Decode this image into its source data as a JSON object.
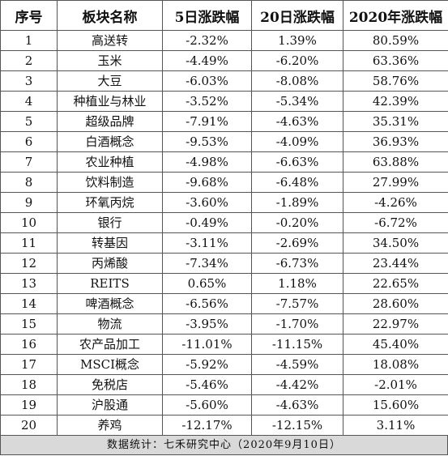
{
  "table": {
    "headers": [
      "序号",
      "板块名称",
      "5日涨跌幅",
      "20日涨跌幅",
      "2020年涨跌幅"
    ],
    "rows": [
      [
        "1",
        "高送转",
        "-2.32%",
        "1.39%",
        "80.59%"
      ],
      [
        "2",
        "玉米",
        "-4.49%",
        "-6.20%",
        "63.36%"
      ],
      [
        "3",
        "大豆",
        "-6.03%",
        "-8.08%",
        "58.76%"
      ],
      [
        "4",
        "种植业与林业",
        "-3.52%",
        "-5.34%",
        "42.39%"
      ],
      [
        "5",
        "超级品牌",
        "-7.91%",
        "-4.63%",
        "35.31%"
      ],
      [
        "6",
        "白酒概念",
        "-9.53%",
        "-4.09%",
        "36.93%"
      ],
      [
        "7",
        "农业种植",
        "-4.98%",
        "-6.63%",
        "63.88%"
      ],
      [
        "8",
        "饮料制造",
        "-9.68%",
        "-6.48%",
        "27.99%"
      ],
      [
        "9",
        "环氧丙烷",
        "-3.60%",
        "-1.89%",
        "-4.26%"
      ],
      [
        "10",
        "银行",
        "-0.49%",
        "-0.20%",
        "-6.72%"
      ],
      [
        "11",
        "转基因",
        "-3.11%",
        "-2.69%",
        "34.50%"
      ],
      [
        "12",
        "丙烯酸",
        "-7.34%",
        "-6.73%",
        "23.44%"
      ],
      [
        "13",
        "REITS",
        "0.65%",
        "1.18%",
        "22.65%"
      ],
      [
        "14",
        "啤酒概念",
        "-6.56%",
        "-7.57%",
        "28.60%"
      ],
      [
        "15",
        "物流",
        "-3.95%",
        "-1.70%",
        "22.97%"
      ],
      [
        "16",
        "农产品加工",
        "-11.01%",
        "-11.15%",
        "45.40%"
      ],
      [
        "17",
        "MSCI概念",
        "-5.92%",
        "-4.59%",
        "18.08%"
      ],
      [
        "18",
        "免税店",
        "-5.46%",
        "-4.42%",
        "-2.01%"
      ],
      [
        "19",
        "沪股通",
        "-5.60%",
        "-4.63%",
        "15.60%"
      ],
      [
        "20",
        "养鸡",
        "-12.17%",
        "-12.15%",
        "3.11%"
      ]
    ]
  },
  "footer": {
    "text": "数据统计：七禾研究中心（2020年9月10日）"
  },
  "colors": {
    "border": "#555555",
    "footer_background": "#d9d9d9",
    "text": "#111111"
  }
}
